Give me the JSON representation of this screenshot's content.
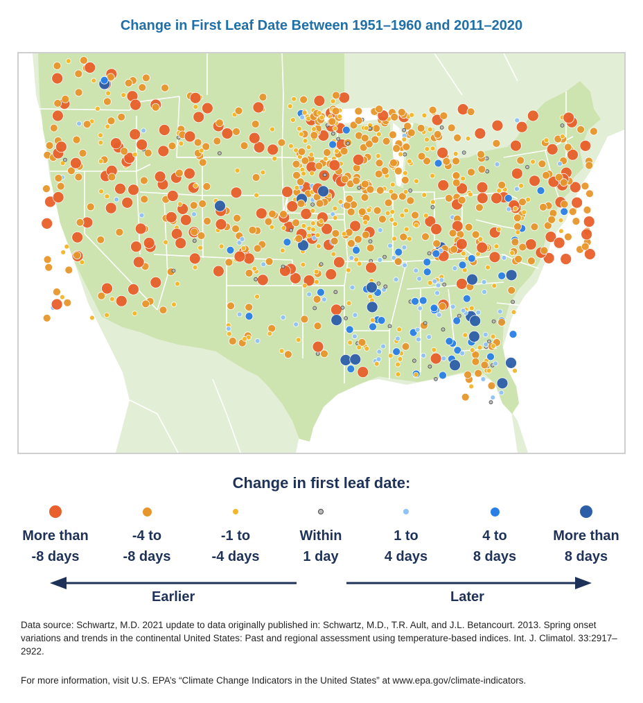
{
  "title": "Change in First Leaf Date Between 1951–1960 and 2011–2020",
  "legend": {
    "title": "Change in first leaf date:",
    "categories": [
      {
        "label": "More than\n-8 days",
        "color": "#e8602c",
        "size": "large"
      },
      {
        "label": "-4 to\n-8 days",
        "color": "#e8962c",
        "size": "medium"
      },
      {
        "label": "-1 to\n-4 days",
        "color": "#f4b62a",
        "size": "small"
      },
      {
        "label": "Within\n1 day",
        "color": "#b9b9b9",
        "size": "tiny"
      },
      {
        "label": "1 to\n4 days",
        "color": "#8fc2f5",
        "size": "small"
      },
      {
        "label": "4 to\n8 days",
        "color": "#2a7fe6",
        "size": "medium"
      },
      {
        "label": "More than\n8 days",
        "color": "#2d5fa8",
        "size": "large"
      }
    ],
    "earlier_label": "Earlier",
    "later_label": "Later"
  },
  "source_text": "Data source: Schwartz, M.D. 2021 update to data originally published in: Schwartz, M.D., T.R. Ault, and J.L. Betancourt. 2013. Spring onset variations and trends in the continental United States: Past and regional assessment using temperature-based indices. Int. J. Climatol. 33:2917–2922.",
  "more_info_text": "For more information, visit U.S. EPA’s “Climate Change Indicators in the United States” at www.epa.gov/climate-indicators.",
  "colors": {
    "title": "#1f6fa8",
    "text_dark": "#1e3159",
    "land_us": "#cde3b0",
    "land_other": "#e3eed6",
    "water": "#ffffff",
    "state_border": "#ffffff"
  }
}
